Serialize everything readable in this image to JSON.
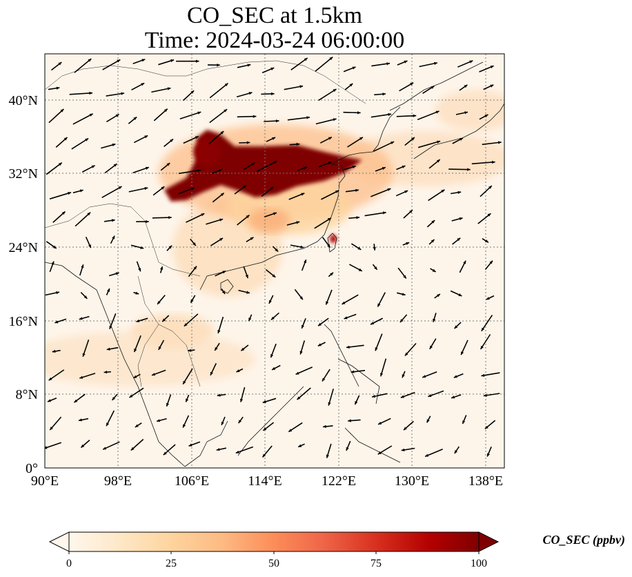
{
  "title": {
    "line1": "CO_SEC at 1.5km",
    "line2": "Time: 2024-03-24 06:00:00"
  },
  "map": {
    "lon_range": [
      90,
      140
    ],
    "lat_range": [
      0,
      45
    ],
    "lon_ticks": [
      "90°E",
      "98°E",
      "106°E",
      "114°E",
      "122°E",
      "130°E",
      "138°E"
    ],
    "lat_ticks": [
      "0°",
      "8°N",
      "16°N",
      "24°N",
      "32°N",
      "40°N"
    ],
    "gridlines": "dotted",
    "colormap": "OrRd",
    "plume_color": "#7f0000",
    "features": [
      "coastlines",
      "country-borders",
      "wind-vectors"
    ]
  },
  "colorbar": {
    "label": "CO_SEC (ppbv)",
    "ticks": [
      "0",
      "25",
      "50",
      "75",
      "100"
    ],
    "range": [
      0,
      100
    ],
    "extend": "both",
    "colors": [
      "#fff7ec",
      "#fee8c8",
      "#fdd49e",
      "#fdbb84",
      "#fc8d59",
      "#ef6548",
      "#d7301f",
      "#b30000",
      "#7f0000"
    ]
  }
}
